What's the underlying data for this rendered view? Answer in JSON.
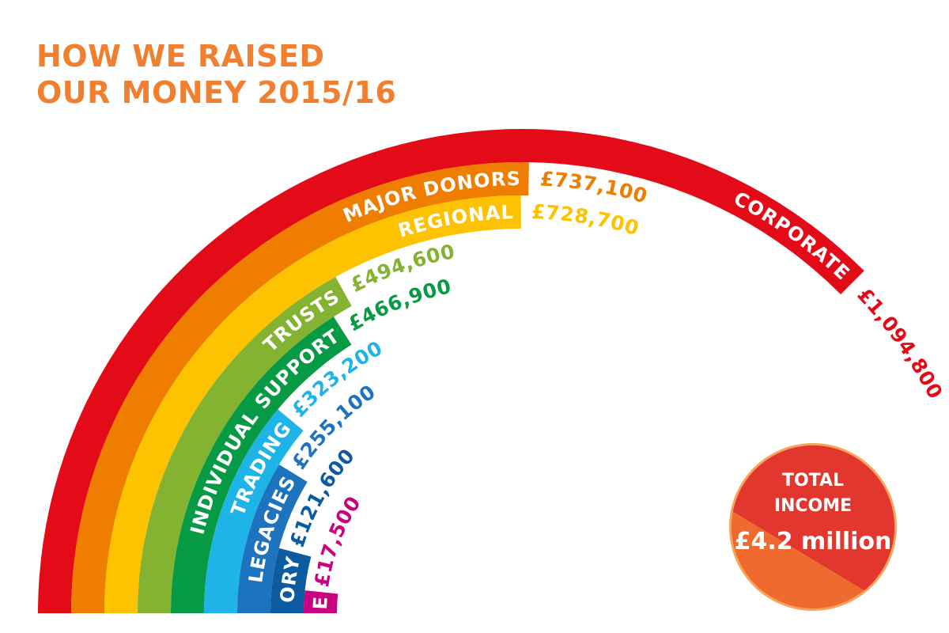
{
  "title": {
    "line1": "HOW WE RAISED",
    "line2": "OUR MONEY 2015/16",
    "color": "#f08030"
  },
  "total": {
    "line1": "TOTAL",
    "line2": "INCOME",
    "amount": "£4.2 million",
    "color_light": "#ef6a2f",
    "color_dark": "#e2372e",
    "ring": "#f7a35c"
  },
  "chart_data": {
    "type": "radial-bar",
    "title": "HOW WE RAISED OUR MONEY 2015/16",
    "unit": "£",
    "series": [
      {
        "category": "CORPORATE",
        "value": 1094800,
        "label": "£1,094,800",
        "color": "#e30b17"
      },
      {
        "category": "MAJOR DONORS",
        "value": 737100,
        "label": "£737,100",
        "color": "#ef7d00"
      },
      {
        "category": "REGIONAL",
        "value": 728700,
        "label": "£728,700",
        "color": "#fdc300"
      },
      {
        "category": "TRUSTS",
        "value": 494600,
        "label": "£494,600",
        "color": "#84b231"
      },
      {
        "category": "INDIVIDUAL SUPPORT",
        "value": 466900,
        "label": "£466,900",
        "color": "#079a45"
      },
      {
        "category": "TRADING",
        "value": 323200,
        "label": "£323,200",
        "color": "#1eb4e8"
      },
      {
        "category": "LEGACIES",
        "value": 255100,
        "label": "£255,100",
        "color": "#1e73be"
      },
      {
        "category": "STATUTORY",
        "value": 121600,
        "label": "£121,600",
        "color": "#0c5aa0"
      },
      {
        "category": "INVESTMENT INCOME",
        "value": 17500,
        "label": "£17,500",
        "color": "#c9007f"
      }
    ]
  }
}
